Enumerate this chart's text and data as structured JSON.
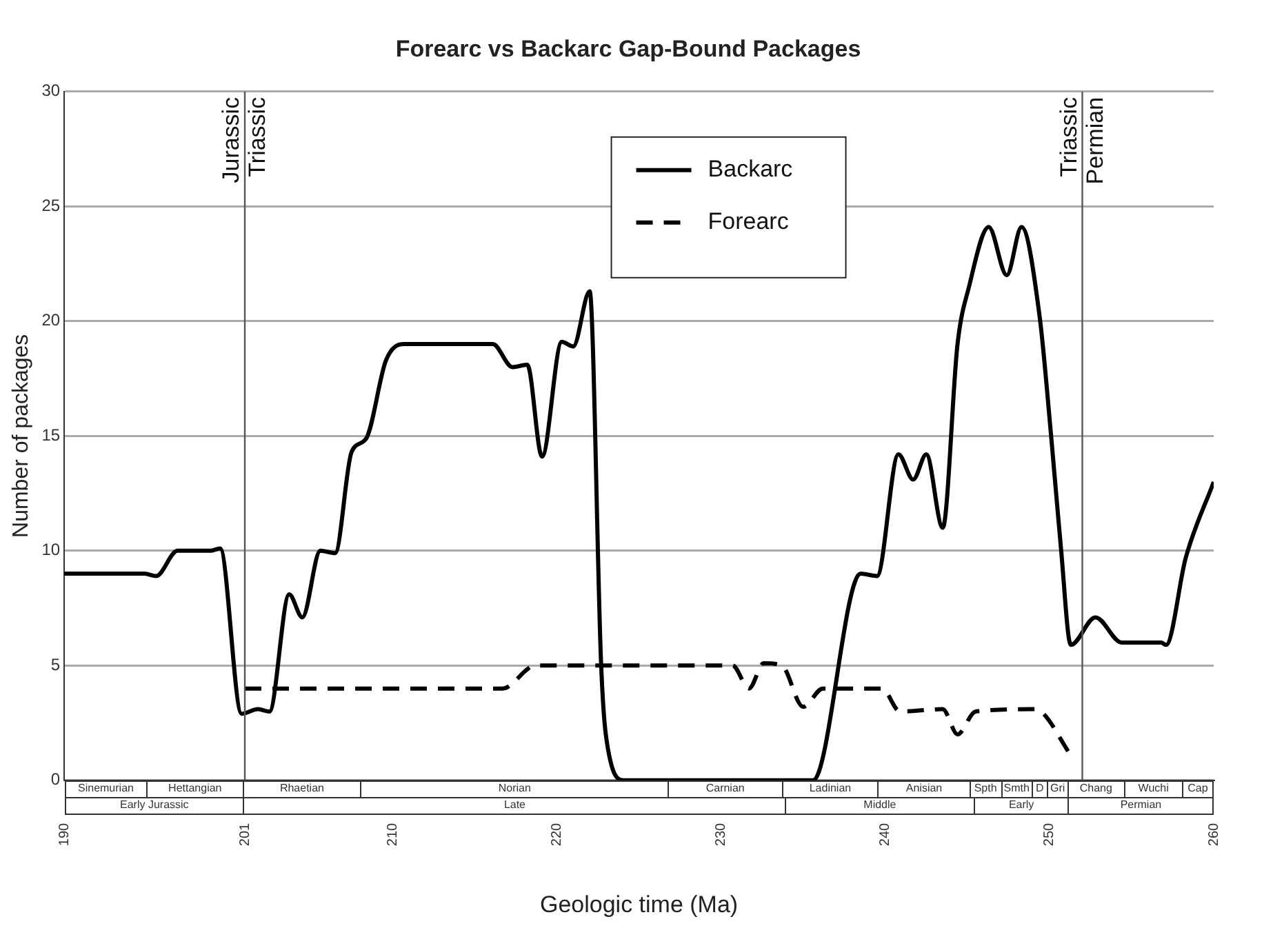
{
  "chart_data": [
    {
      "type": "line",
      "title": "Forearc vs Backarc Gap-Bound Packages",
      "xlabel": "Geologic time (Ma)",
      "ylabel": "Number of packages",
      "xlim": [
        190,
        260
      ],
      "xticks": [
        190,
        201,
        210,
        220,
        230,
        240,
        250,
        260
      ],
      "ylim": [
        0,
        30
      ],
      "yticks": [
        0,
        5,
        10,
        15,
        20,
        25,
        30
      ],
      "grid": "y",
      "legend": "top",
      "marker": "none",
      "series": [
        {
          "name": "Backarc",
          "color": "#000000",
          "line_style": "solid",
          "x": [
            190,
            194.9,
            195.6,
            196.9,
            198.9,
            199.5,
            200.8,
            201.8,
            202.5,
            203.7,
            204.5,
            205.6,
            206.5,
            207.5,
            208.4,
            209.6,
            210.7,
            216.1,
            217.3,
            218.2,
            219.1,
            220.3,
            221.0,
            222.0,
            222.7,
            223.0,
            224.1,
            235.6,
            238.5,
            239.5,
            240.8,
            241.7,
            242.5,
            243.5,
            244.4,
            245.1,
            246.3,
            247.4,
            248.3,
            249.4,
            250.1,
            250.7,
            251.3,
            252.8,
            254.4,
            256.8,
            257.1,
            258.3,
            260
          ],
          "values": [
            9,
            9,
            8.9,
            10,
            10,
            10.1,
            2.9,
            3.1,
            3,
            8.1,
            7.1,
            10,
            9.9,
            14.3,
            14.9,
            18.3,
            19,
            19,
            18,
            18.1,
            14.1,
            19.1,
            18.9,
            21.3,
            5,
            1.9,
            0,
            0,
            9,
            8.9,
            14.2,
            13.1,
            14.2,
            11,
            19,
            21.5,
            24.1,
            22,
            24.1,
            20.2,
            15,
            10.1,
            5.9,
            7.1,
            6,
            6,
            5.9,
            9.7,
            13
          ]
        },
        {
          "name": "Forearc",
          "color": "#000000",
          "line_style": "dashed",
          "x": [
            201,
            216.7,
            218.7,
            230.7,
            231.7,
            232.6,
            233.7,
            235.0,
            236.2,
            239.8,
            240.9,
            243.5,
            244.4,
            245.5,
            249.1,
            251.4
          ],
          "values": [
            4,
            4,
            5,
            5,
            4,
            5.1,
            5,
            3.2,
            4,
            4,
            3,
            3.1,
            2,
            3,
            3.1,
            1
          ]
        }
      ],
      "ref_lines": [
        {
          "axis": "x",
          "value": 201,
          "label": "Jurassic\nTriassic"
        },
        {
          "axis": "x",
          "value": 252,
          "label": "Triassic\nPermian"
        }
      ]
    },
    {
      "type": "other",
      "annotations": [
        "Sinemurian",
        "Hettangian",
        "Rhaetian",
        "Norian",
        "Carnian",
        "Ladinian",
        "Anisian",
        "Spth",
        "Smth",
        "D",
        "Gri",
        "Chang",
        "Wuchi",
        "Cap",
        "Early Jurassic",
        "Late",
        "Middle",
        "Early",
        "Permian"
      ]
    }
  ]
}
